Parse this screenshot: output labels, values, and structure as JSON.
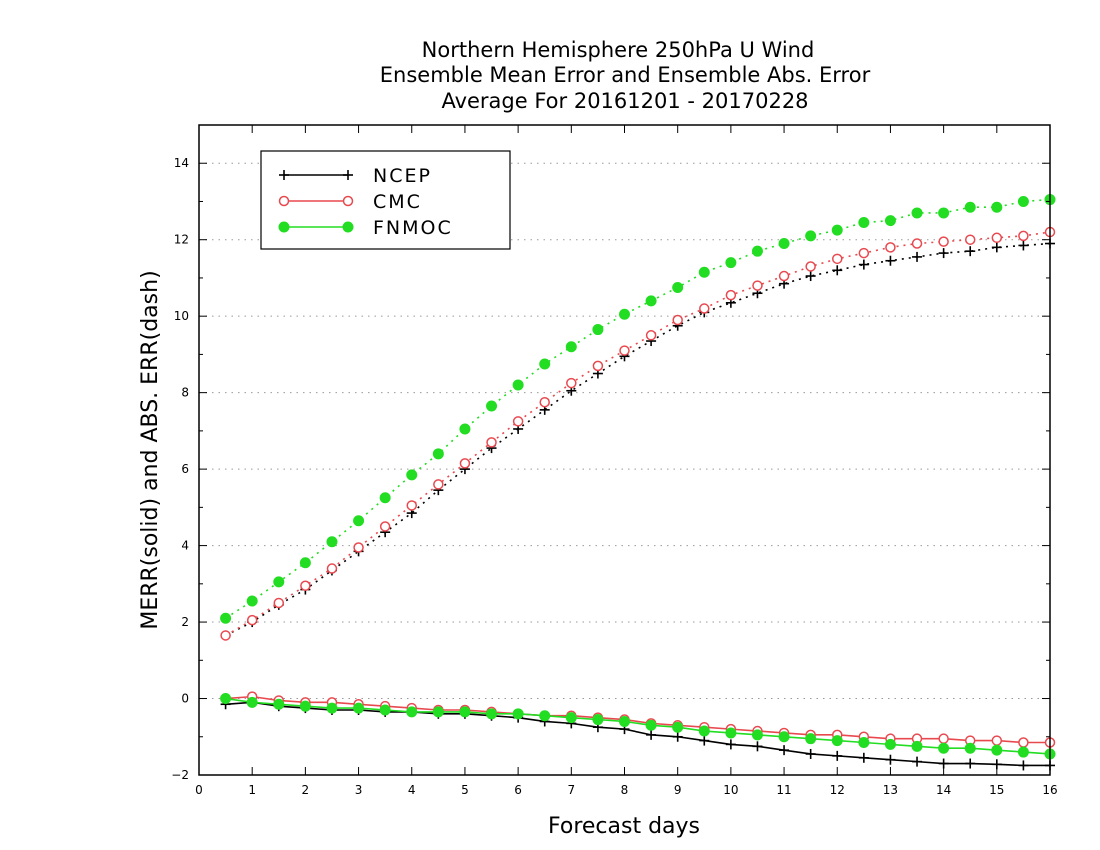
{
  "chart_data": {
    "type": "line",
    "title": [
      "Northern Hemisphere 250hPa U Wind",
      "Ensemble Mean Error and Ensemble Abs. Error",
      "Average For 20161201 - 20170228"
    ],
    "xlabel": "Forecast days",
    "ylabel": "MERR(solid) and ABS. ERR(dash)",
    "xlim": [
      0,
      16
    ],
    "ylim": [
      -2,
      15
    ],
    "x_ticks": [
      "0",
      "1",
      "2",
      "3",
      "4",
      "5",
      "6",
      "7",
      "8",
      "9",
      "10",
      "11",
      "12",
      "13",
      "14",
      "15",
      "16"
    ],
    "y_ticks": [
      "−2",
      "0",
      "2",
      "4",
      "6",
      "8",
      "10",
      "12",
      "14"
    ],
    "y_tick_values": [
      -2,
      0,
      2,
      4,
      6,
      8,
      10,
      12,
      14
    ],
    "grid": "horizontal dotted",
    "legend_position": "top-left",
    "x": [
      0.5,
      1,
      1.5,
      2,
      2.5,
      3,
      3.5,
      4,
      4.5,
      5,
      5.5,
      6,
      6.5,
      7,
      7.5,
      8,
      8.5,
      9,
      9.5,
      10,
      10.5,
      11,
      11.5,
      12,
      12.5,
      13,
      13.5,
      14,
      14.5,
      15,
      15.5,
      16
    ],
    "series": [
      {
        "name": "NCEP",
        "color": "#000000",
        "marker": "plus",
        "abs_error": [
          1.65,
          2.0,
          2.45,
          2.85,
          3.35,
          3.85,
          4.35,
          4.85,
          5.45,
          6.0,
          6.55,
          7.05,
          7.55,
          8.05,
          8.5,
          8.95,
          9.35,
          9.75,
          10.1,
          10.35,
          10.6,
          10.85,
          11.05,
          11.2,
          11.35,
          11.45,
          11.55,
          11.65,
          11.7,
          11.8,
          11.85,
          11.9
        ],
        "mean_error": [
          -0.15,
          -0.1,
          -0.2,
          -0.25,
          -0.3,
          -0.3,
          -0.35,
          -0.35,
          -0.4,
          -0.4,
          -0.45,
          -0.5,
          -0.6,
          -0.65,
          -0.75,
          -0.8,
          -0.95,
          -1.0,
          -1.1,
          -1.2,
          -1.25,
          -1.35,
          -1.45,
          -1.5,
          -1.55,
          -1.6,
          -1.65,
          -1.7,
          -1.7,
          -1.72,
          -1.75,
          -1.75
        ]
      },
      {
        "name": "CMC",
        "color": "#e8494f",
        "marker": "open-circle",
        "abs_error": [
          1.65,
          2.05,
          2.5,
          2.95,
          3.4,
          3.95,
          4.5,
          5.05,
          5.6,
          6.15,
          6.7,
          7.25,
          7.75,
          8.25,
          8.7,
          9.1,
          9.5,
          9.9,
          10.2,
          10.55,
          10.8,
          11.05,
          11.3,
          11.5,
          11.65,
          11.8,
          11.9,
          11.95,
          12.0,
          12.05,
          12.1,
          12.2
        ],
        "mean_error": [
          0.0,
          0.05,
          -0.05,
          -0.1,
          -0.1,
          -0.15,
          -0.2,
          -0.25,
          -0.3,
          -0.3,
          -0.35,
          -0.4,
          -0.45,
          -0.45,
          -0.5,
          -0.55,
          -0.65,
          -0.7,
          -0.75,
          -0.8,
          -0.85,
          -0.9,
          -0.95,
          -0.95,
          -1.0,
          -1.05,
          -1.05,
          -1.05,
          -1.1,
          -1.1,
          -1.15,
          -1.15
        ]
      },
      {
        "name": "FNMOC",
        "color": "#22dd22",
        "marker": "filled-circle",
        "abs_error": [
          2.1,
          2.55,
          3.05,
          3.55,
          4.1,
          4.65,
          5.25,
          5.85,
          6.4,
          7.05,
          7.65,
          8.2,
          8.75,
          9.2,
          9.65,
          10.05,
          10.4,
          10.75,
          11.15,
          11.4,
          11.7,
          11.9,
          12.1,
          12.25,
          12.45,
          12.5,
          12.7,
          12.7,
          12.85,
          12.85,
          13.0,
          13.05
        ],
        "mean_error": [
          0.0,
          -0.1,
          -0.15,
          -0.2,
          -0.25,
          -0.25,
          -0.3,
          -0.35,
          -0.35,
          -0.35,
          -0.4,
          -0.4,
          -0.45,
          -0.5,
          -0.55,
          -0.6,
          -0.7,
          -0.75,
          -0.85,
          -0.9,
          -0.95,
          -1.0,
          -1.05,
          -1.1,
          -1.15,
          -1.2,
          -1.25,
          -1.3,
          -1.3,
          -1.35,
          -1.4,
          -1.45
        ]
      }
    ]
  }
}
